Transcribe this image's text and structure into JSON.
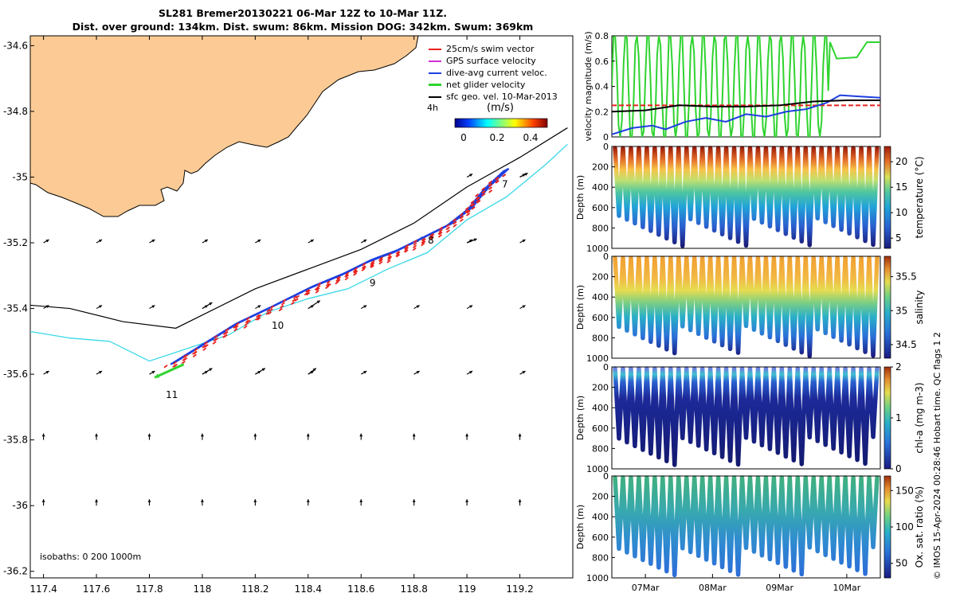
{
  "title_line1": "SL281 Bremer20130221 06-Mar 12Z to 10-Mar 11Z.",
  "title_line2": "Dist. over ground: 134km. Dist. swum: 86km. Mission DOG: 342km. Swum: 369km",
  "legend": [
    {
      "label": "25cm/s swim vector",
      "color": "#e8231f"
    },
    {
      "label": "GPS surface velocity",
      "color": "#d32fd3"
    },
    {
      "label": "dive-avg current veloc.",
      "color": "#1d3fe0"
    },
    {
      "label": "net glider velocity",
      "color": "#2fd32f"
    },
    {
      "label": "sfc geo. vel. 10-Mar-2013",
      "color": "#000000"
    }
  ],
  "label_4h": "4h",
  "colorscale_unit": "(m/s)",
  "colorscale_ticks": [
    "0",
    "0.2",
    "0.4"
  ],
  "isobaths_label": "isobaths: 0   200  1000m",
  "footer": "© IMOS 15-Apr-2024 00:28:46 Hobart time. QC flags 1  2",
  "chart_data": [
    {
      "type": "scatter",
      "name": "map",
      "xlim": [
        117.35,
        119.4
      ],
      "ylim": [
        -36.22,
        -34.57
      ],
      "x_ticks": [
        "117.4",
        "117.6",
        "117.8",
        "118",
        "118.2",
        "118.4",
        "118.6",
        "118.8",
        "119",
        "119.2"
      ],
      "x_tick_values": [
        117.4,
        117.6,
        117.8,
        118.0,
        118.2,
        118.4,
        118.6,
        118.8,
        119.0,
        119.2
      ],
      "y_ticks": [
        "-34.6",
        "-34.8",
        "-35",
        "-35.2",
        "-35.4",
        "-35.6",
        "-35.8",
        "-36",
        "-36.2"
      ],
      "y_tick_values": [
        -34.6,
        -34.8,
        -35.0,
        -35.2,
        -35.4,
        -35.6,
        -35.8,
        -36.0,
        -36.2
      ],
      "track": {
        "lon": [
          117.88,
          118.0,
          118.12,
          118.25,
          118.4,
          118.52,
          118.62,
          118.72,
          118.82,
          118.92,
          119.0,
          119.06,
          119.14
        ],
        "lat": [
          -35.57,
          -35.51,
          -35.45,
          -35.4,
          -35.34,
          -35.3,
          -35.26,
          -35.23,
          -35.19,
          -35.15,
          -35.1,
          -35.04,
          -34.98
        ]
      },
      "day_labels": [
        {
          "label": "7",
          "lon": 119.12,
          "lat": -35.02
        },
        {
          "label": "8",
          "lon": 118.84,
          "lat": -35.19
        },
        {
          "label": "9",
          "lon": 118.62,
          "lat": -35.32
        },
        {
          "label": "10",
          "lon": 118.25,
          "lat": -35.45
        },
        {
          "label": "11",
          "lon": 117.85,
          "lat": -35.66
        }
      ],
      "net_velocity_arrow": {
        "lon": 117.93,
        "lat": -35.57,
        "dlon": -0.11,
        "dlat": -0.04
      },
      "isobath_200": {
        "lon": [
          117.35,
          117.5,
          117.65,
          117.8,
          117.95,
          118.1,
          118.25,
          118.4,
          118.55,
          118.7,
          118.85,
          119.0,
          119.15,
          119.3,
          119.38
        ],
        "lat": [
          -35.47,
          -35.49,
          -35.5,
          -35.56,
          -35.52,
          -35.48,
          -35.41,
          -35.37,
          -35.34,
          -35.28,
          -35.23,
          -35.13,
          -35.06,
          -34.96,
          -34.9
        ]
      },
      "isobath_1000": {
        "lon": [
          117.35,
          117.5,
          117.7,
          117.9,
          118.0,
          118.2,
          118.4,
          118.6,
          118.8,
          119.0,
          119.2,
          119.38
        ],
        "lat": [
          -35.39,
          -35.4,
          -35.44,
          -35.46,
          -35.42,
          -35.34,
          -35.28,
          -35.22,
          -35.14,
          -35.03,
          -34.94,
          -34.85
        ]
      },
      "geo_vectors": [
        {
          "lon": 118.0,
          "lat": -35.4,
          "dlon": 0.05,
          "dlat": 0.03
        },
        {
          "lon": 118.4,
          "lat": -35.4,
          "dlon": 0.06,
          "dlat": 0.04
        },
        {
          "lon": 118.8,
          "lat": -35.2,
          "dlon": 0.05,
          "dlat": 0.03
        },
        {
          "lon": 119.0,
          "lat": -35.2,
          "dlon": 0.05,
          "dlat": 0.02
        },
        {
          "lon": 118.0,
          "lat": -35.6,
          "dlon": 0.05,
          "dlat": 0.03
        },
        {
          "lon": 118.2,
          "lat": -35.6,
          "dlon": 0.05,
          "dlat": 0.03
        },
        {
          "lon": 118.4,
          "lat": -35.6,
          "dlon": 0.04,
          "dlat": 0.03
        },
        {
          "lon": 119.2,
          "lat": -35.0,
          "dlon": 0.04,
          "dlat": 0.02
        }
      ],
      "colorbar_range": [
        0,
        0.5
      ]
    },
    {
      "type": "line",
      "name": "velocity",
      "ylabel": "velocity magnitude (m/s)",
      "ylim": [
        0,
        0.8
      ],
      "y_ticks": [
        "0",
        "0.2",
        "0.4",
        "0.6",
        "0.8"
      ],
      "y_tick_values": [
        0,
        0.2,
        0.4,
        0.6,
        0.8
      ],
      "xlim": [
        6.5,
        10.5
      ],
      "series": [
        {
          "name": "swim (25cm/s)",
          "color": "#e8231f",
          "x": [
            6.5,
            10.5
          ],
          "y": [
            0.25,
            0.25
          ]
        },
        {
          "name": "dive-avg current",
          "color": "#1d3fe0",
          "x": [
            6.5,
            6.8,
            7.1,
            7.3,
            7.6,
            7.9,
            8.2,
            8.5,
            8.8,
            9.1,
            9.4,
            9.7,
            9.9,
            10.2,
            10.5
          ],
          "y": [
            0.02,
            0.07,
            0.09,
            0.06,
            0.12,
            0.15,
            0.12,
            0.18,
            0.16,
            0.2,
            0.22,
            0.27,
            0.33,
            0.32,
            0.31
          ]
        },
        {
          "name": "surface geo. vel.",
          "color": "#000000",
          "x": [
            6.5,
            7.0,
            7.5,
            8.0,
            8.5,
            9.0,
            9.5,
            10.0,
            10.5
          ],
          "y": [
            0.2,
            0.21,
            0.25,
            0.24,
            0.24,
            0.25,
            0.28,
            0.29,
            0.29
          ]
        },
        {
          "name": "net glider velocity",
          "color": "#2fd32f",
          "x": [
            6.5,
            10.5
          ],
          "y": [
            0.0,
            0.75
          ]
        }
      ]
    },
    {
      "type": "scatter",
      "name": "temperature",
      "ylabel": "Depth (m)",
      "ylim": [
        0,
        1000
      ],
      "y_ticks": [
        "0",
        "200",
        "400",
        "600",
        "800",
        "1000"
      ],
      "cbar_label": "temperature (°C)",
      "cbar_range": [
        3,
        23
      ],
      "cbar_ticks": [
        "5",
        "10",
        "15",
        "20"
      ]
    },
    {
      "type": "scatter",
      "name": "salinity",
      "ylabel": "Depth (m)",
      "ylim": [
        0,
        1000
      ],
      "y_ticks": [
        "0",
        "200",
        "400",
        "600",
        "800",
        "1000"
      ],
      "cbar_label": "salinity",
      "cbar_range": [
        34.3,
        35.8
      ],
      "cbar_ticks": [
        "34.5",
        "35",
        "35.5"
      ]
    },
    {
      "type": "scatter",
      "name": "chlorophyll",
      "ylabel": "Depth (m)",
      "ylim": [
        0,
        1000
      ],
      "y_ticks": [
        "0",
        "200",
        "400",
        "600",
        "800",
        "1000"
      ],
      "cbar_label": "chl-a (mg m-3)",
      "cbar_range": [
        0,
        2
      ],
      "cbar_ticks": [
        "0",
        "1",
        "2"
      ]
    },
    {
      "type": "scatter",
      "name": "oxygen",
      "ylabel": "Depth (m)",
      "ylim": [
        0,
        1000
      ],
      "y_ticks": [
        "0",
        "200",
        "400",
        "600",
        "800",
        "1000"
      ],
      "cbar_label": "Ox. sat. ratio (%)",
      "cbar_range": [
        30,
        170
      ],
      "cbar_ticks": [
        "50",
        "100",
        "150"
      ],
      "x_ticks": [
        "07Mar",
        "08Mar",
        "09Mar",
        "10Mar"
      ],
      "x_tick_values": [
        7,
        8,
        9,
        10
      ],
      "xlim": [
        6.5,
        10.5
      ]
    }
  ]
}
